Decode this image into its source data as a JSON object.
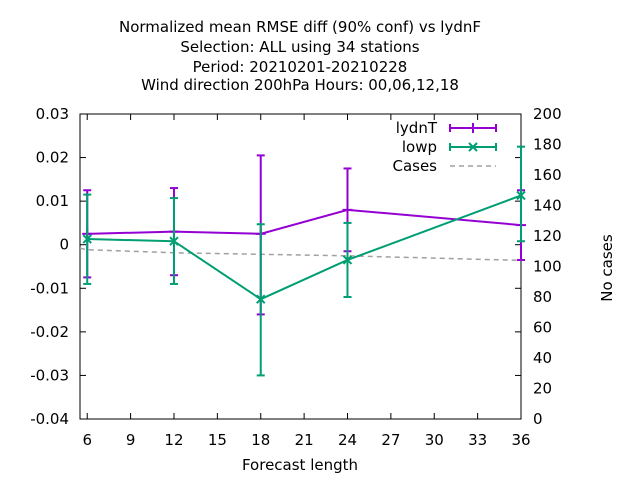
{
  "chart_data": {
    "type": "line",
    "title_lines": [
      "Normalized mean RMSE diff (90% conf) vs lydnF",
      "Selection: ALL using    34 stations",
      "Period: 20210201-20210228",
      "Wind direction 200hPa   Hours:  00,06,12,18"
    ],
    "xlabel": "Forecast length",
    "ylabel": "",
    "y2label": "No cases",
    "xlim": [
      5.5,
      36
    ],
    "ylim": [
      -0.04,
      0.03
    ],
    "y2lim": [
      0,
      200
    ],
    "xticks": [
      6,
      9,
      12,
      15,
      18,
      21,
      24,
      27,
      30,
      33,
      36
    ],
    "yticks": [
      -0.04,
      -0.03,
      -0.02,
      -0.01,
      0,
      0.01,
      0.02,
      0.03
    ],
    "y2ticks": [
      0,
      20,
      40,
      60,
      80,
      100,
      120,
      140,
      160,
      180,
      200
    ],
    "ytick_labels": [
      "-0.04",
      "-0.03",
      "-0.02",
      "-0.01",
      "0",
      "0.01",
      "0.02",
      "0.03"
    ],
    "xtick_labels": [
      "6",
      "9",
      "12",
      "15",
      "18",
      "21",
      "24",
      "27",
      "30",
      "33",
      "36"
    ],
    "y2tick_labels": [
      "0",
      "20",
      "40",
      "60",
      "80",
      "100",
      "120",
      "140",
      "160",
      "180",
      "200"
    ],
    "x": [
      6,
      12,
      18,
      24,
      36
    ],
    "series": [
      {
        "name": "lydnT",
        "color": "#9400d3",
        "marker": "plus",
        "values": [
          0.0025,
          0.003,
          0.0025,
          0.008,
          0.0045
        ],
        "err_low": [
          -0.0075,
          -0.007,
          -0.016,
          -0.0015,
          -0.0035
        ],
        "err_high": [
          0.0125,
          0.013,
          0.0205,
          0.0175,
          0.0125
        ]
      },
      {
        "name": "lowp",
        "color": "#009e73",
        "marker": "x",
        "values": [
          0.0013,
          0.0008,
          -0.0125,
          -0.0035,
          0.0113
        ],
        "err_low": [
          -0.009,
          -0.009,
          -0.03,
          -0.012,
          0.0008
        ],
        "err_high": [
          0.0115,
          0.0107,
          0.0047,
          0.005,
          0.0225
        ]
      }
    ],
    "cases": {
      "name": "Cases",
      "color": "#a0a0a0",
      "x": [
        5.5,
        6,
        12,
        18,
        24,
        36
      ],
      "values": [
        112,
        111,
        109,
        108,
        107,
        104
      ]
    },
    "legend_position": "top-right",
    "grid": false
  }
}
